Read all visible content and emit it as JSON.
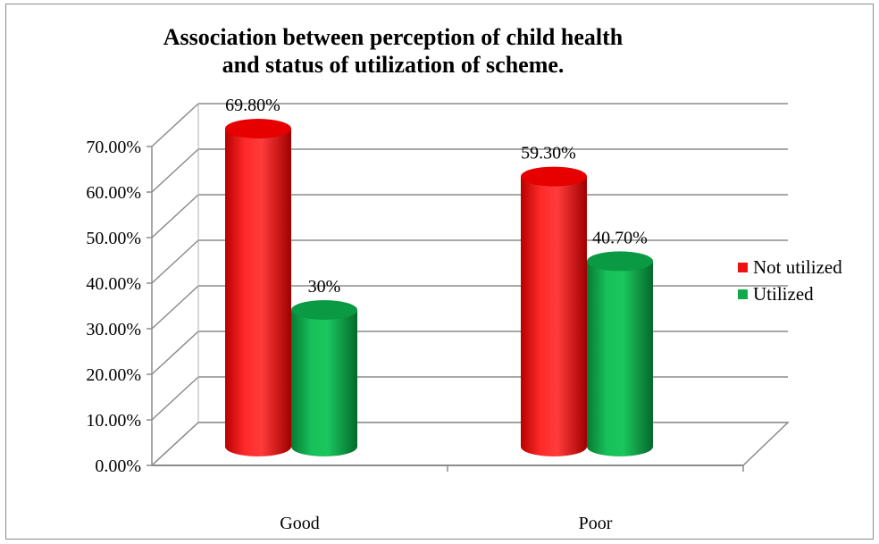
{
  "chart_data": {
    "type": "bar",
    "title": "Association between perception of child health and status of utilization of scheme.",
    "categories": [
      "Good",
      "Poor"
    ],
    "series": [
      {
        "name": "Not utilized",
        "values": [
          69.8,
          59.3
        ],
        "labels": [
          "69.80%",
          "59.30%"
        ],
        "color": "#ee1111"
      },
      {
        "name": "Utilized",
        "values": [
          30,
          40.7
        ],
        "labels": [
          "30%",
          "40.70%"
        ],
        "color": "#11a94a"
      }
    ],
    "ylim": [
      0,
      70
    ],
    "yticks": [
      "0.00%",
      "10.00%",
      "20.00%",
      "30.00%",
      "40.00%",
      "50.00%",
      "60.00%",
      "70.00%"
    ],
    "legend_position": "right",
    "grid": true,
    "style": "3d-cylinder"
  }
}
